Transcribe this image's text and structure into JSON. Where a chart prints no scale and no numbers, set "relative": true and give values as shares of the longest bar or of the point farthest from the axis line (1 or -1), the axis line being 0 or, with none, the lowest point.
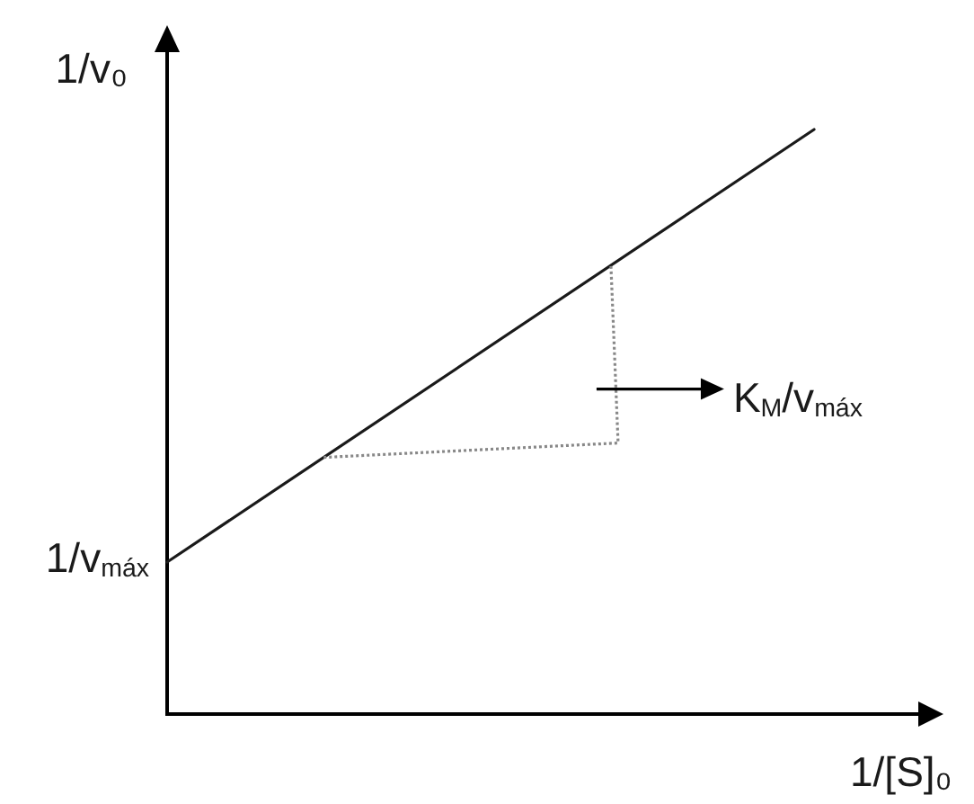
{
  "chart_data": {
    "type": "line",
    "relative": true,
    "categories": [
      null,
      null
    ],
    "values": [
      0.26,
      1
    ],
    "color": "#1a1a1a",
    "xlabel": "1/[S]₀",
    "ylabel": "1/v₀",
    "annotations": [
      "1/v$_{máx}$",
      "K$_{M}$/v$_{máx}$"
    ],
    "marker": "none",
    "line_style": "solid"
  }
}
